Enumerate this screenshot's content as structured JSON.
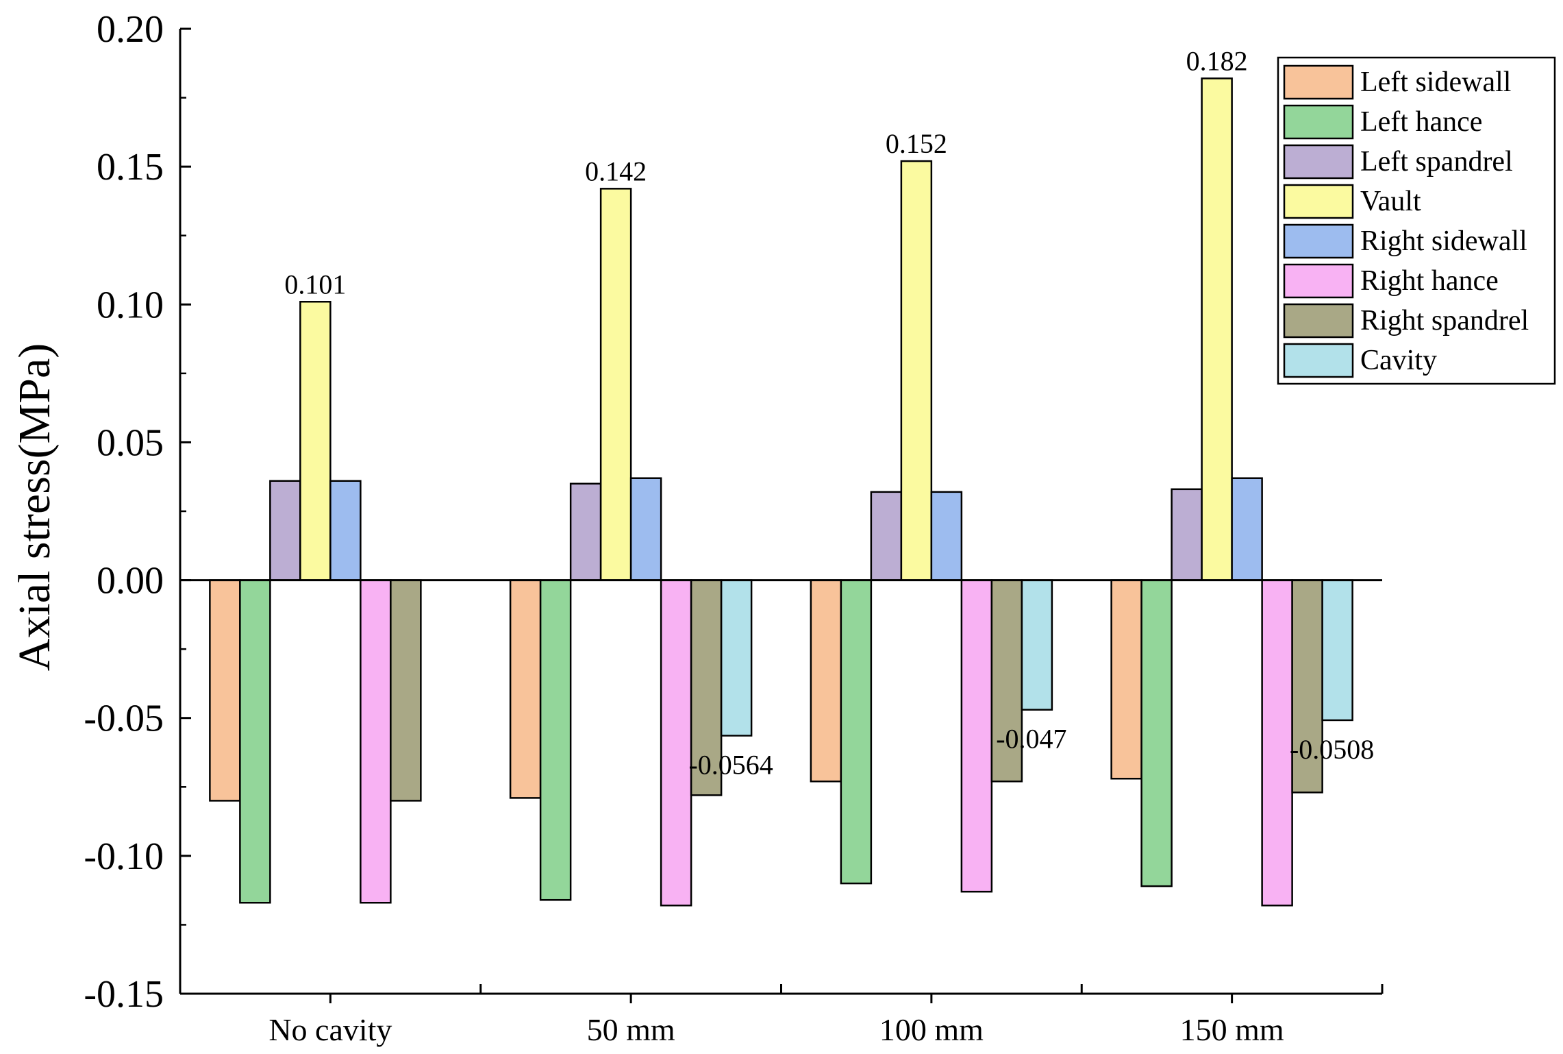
{
  "chart_data": {
    "type": "bar",
    "ylabel": "Axial stress(MPa)",
    "xlabel": "",
    "ylim": [
      -0.15,
      0.2
    ],
    "yticks": [
      "0.20",
      "0.15",
      "0.10",
      "0.05",
      "0.00",
      "-0.05",
      "-0.10",
      "-0.15"
    ],
    "yticks_values": [
      0.2,
      0.15,
      0.1,
      0.05,
      0.0,
      -0.05,
      -0.1,
      -0.15
    ],
    "categories": [
      "No cavity",
      "50 mm",
      "100 mm",
      "150 mm"
    ],
    "legend_position": "top-right",
    "grid": false,
    "series": [
      {
        "name": "Left sidewall",
        "color": "#f8c39a",
        "values": [
          -0.08,
          -0.079,
          -0.073,
          -0.072
        ]
      },
      {
        "name": "Left hance",
        "color": "#93d69a",
        "values": [
          -0.117,
          -0.116,
          -0.11,
          -0.111
        ]
      },
      {
        "name": "Left spandrel",
        "color": "#bcaed3",
        "values": [
          0.036,
          0.035,
          0.032,
          0.033
        ]
      },
      {
        "name": "Vault",
        "color": "#fbfaa0",
        "values": [
          0.101,
          0.142,
          0.152,
          0.182
        ]
      },
      {
        "name": "Right sidewall",
        "color": "#9dbcef",
        "values": [
          0.036,
          0.037,
          0.032,
          0.037
        ]
      },
      {
        "name": "Right hance",
        "color": "#f8b2f3",
        "values": [
          -0.117,
          -0.118,
          -0.113,
          -0.118
        ]
      },
      {
        "name": "Right spandrel",
        "color": "#a9a886",
        "values": [
          -0.08,
          -0.078,
          -0.073,
          -0.077
        ]
      },
      {
        "name": "Cavity",
        "color": "#b2e1ea",
        "values": [
          null,
          -0.0564,
          -0.047,
          -0.0508
        ]
      }
    ],
    "data_labels": [
      {
        "series": "Vault",
        "category": "No cavity",
        "text": "0.101"
      },
      {
        "series": "Vault",
        "category": "50 mm",
        "text": "0.142"
      },
      {
        "series": "Vault",
        "category": "100 mm",
        "text": "0.152"
      },
      {
        "series": "Vault",
        "category": "150 mm",
        "text": "0.182"
      },
      {
        "series": "Cavity",
        "category": "50 mm",
        "text": "-0.0564"
      },
      {
        "series": "Cavity",
        "category": "100 mm",
        "text": "-0.047"
      },
      {
        "series": "Cavity",
        "category": "150 mm",
        "text": "-0.0508"
      }
    ]
  }
}
